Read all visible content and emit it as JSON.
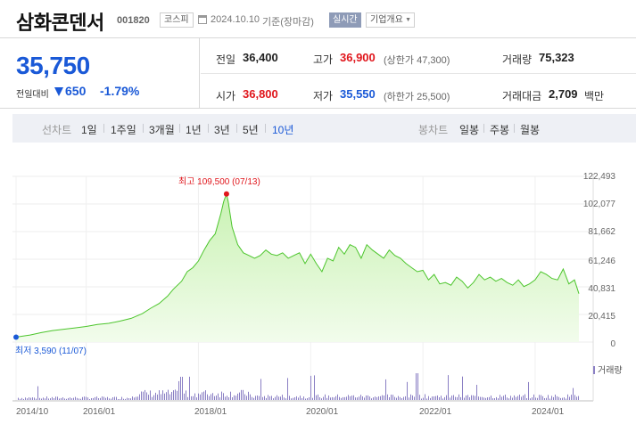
{
  "header": {
    "title": "삼화콘덴서",
    "code": "001820",
    "market": "코스피",
    "date": "2024.10.10",
    "basis": "기준(장마감)",
    "realtime": "실시간",
    "overview": "기업개요"
  },
  "quote": {
    "price": "35,750",
    "compare_label": "전일대비",
    "change": "650",
    "change_pct": "-1.79%",
    "prev_label": "전일",
    "prev": "36,400",
    "high_label": "고가",
    "high": "36,900",
    "high_note": "(상한가 47,300)",
    "volume_label": "거래량",
    "volume": "75,323",
    "open_label": "시가",
    "open": "36,800",
    "low_label": "저가",
    "low": "35,550",
    "low_note": "(하한가 25,500)",
    "value_label": "거래대금",
    "value": "2,709",
    "value_unit": "백만"
  },
  "tabs": {
    "line_label": "선차트",
    "line_items": [
      "1일",
      "1주일",
      "3개월",
      "1년",
      "3년",
      "5년",
      "10년"
    ],
    "active": "10년",
    "candle_label": "봉차트",
    "candle_items": [
      "일봉",
      "주봉",
      "월봉"
    ]
  },
  "colors": {
    "down": "#1a59d7",
    "up": "#e0161c",
    "line": "#4cc52c",
    "fill_top": "#c9f2b3",
    "fill_bottom": "#f2fcec",
    "volume": "#8a7fc4"
  },
  "chart_data": {
    "type": "area",
    "y_ticks": [
      "122,493",
      "102,077",
      "81,662",
      "61,246",
      "40,831",
      "20,415",
      "0"
    ],
    "ylim": [
      0,
      122493
    ],
    "x_ticks": [
      "2014/10",
      "2016/01",
      "2018/01",
      "2020/01",
      "2022/01",
      "2024/01"
    ],
    "x_tick_years": [
      2014.75,
      2016.0,
      2018.0,
      2020.0,
      2022.0,
      2024.0
    ],
    "xlim": [
      2014.75,
      2024.78
    ],
    "max_label": "최고 109,500 (07/13)",
    "min_label": "최저 3,590 (11/07)",
    "volume_legend": "거래량",
    "series": [
      {
        "x": [
          2014.75,
          2014.85,
          2015.0,
          2015.2,
          2015.4,
          2015.6,
          2015.8,
          2016.0,
          2016.2,
          2016.4,
          2016.6,
          2016.8,
          2017.0,
          2017.15,
          2017.3,
          2017.45,
          2017.55,
          2017.7,
          2017.8,
          2017.9,
          2018.0,
          2018.1,
          2018.2,
          2018.3,
          2018.4,
          2018.45,
          2018.5,
          2018.53,
          2018.6,
          2018.7,
          2018.8,
          2018.9,
          2019.0,
          2019.1,
          2019.2,
          2019.3,
          2019.4,
          2019.5,
          2019.6,
          2019.7,
          2019.8,
          2019.9,
          2020.0,
          2020.1,
          2020.2,
          2020.3,
          2020.4,
          2020.5,
          2020.6,
          2020.7,
          2020.8,
          2020.9,
          2021.0,
          2021.1,
          2021.2,
          2021.3,
          2021.4,
          2021.5,
          2021.6,
          2021.7,
          2021.8,
          2021.9,
          2022.0,
          2022.1,
          2022.2,
          2022.3,
          2022.4,
          2022.5,
          2022.6,
          2022.7,
          2022.8,
          2022.9,
          2023.0,
          2023.1,
          2023.2,
          2023.3,
          2023.4,
          2023.5,
          2023.6,
          2023.7,
          2023.8,
          2023.9,
          2024.0,
          2024.1,
          2024.2,
          2024.3,
          2024.4,
          2024.5,
          2024.6,
          2024.7,
          2024.78
        ],
        "values": [
          3590,
          4300,
          5200,
          7000,
          8500,
          9500,
          10500,
          11500,
          13000,
          13800,
          15500,
          17500,
          21000,
          25000,
          28500,
          34000,
          39000,
          45000,
          52000,
          55000,
          60000,
          68000,
          75000,
          80000,
          95000,
          104000,
          109500,
          104000,
          85000,
          72000,
          66000,
          64000,
          62000,
          64000,
          68000,
          65000,
          64000,
          66000,
          62000,
          64000,
          66000,
          58000,
          65000,
          58000,
          52000,
          62000,
          60000,
          70000,
          65000,
          72000,
          70000,
          62000,
          72000,
          68000,
          65000,
          62000,
          68000,
          64000,
          62000,
          58000,
          55000,
          52000,
          53000,
          46000,
          50000,
          43000,
          44000,
          42000,
          48000,
          45000,
          40000,
          44000,
          50000,
          46000,
          48000,
          45000,
          47000,
          44000,
          42000,
          46000,
          41000,
          43000,
          46000,
          52000,
          50000,
          47000,
          46000,
          54000,
          43000,
          46000,
          35750
        ]
      }
    ]
  }
}
